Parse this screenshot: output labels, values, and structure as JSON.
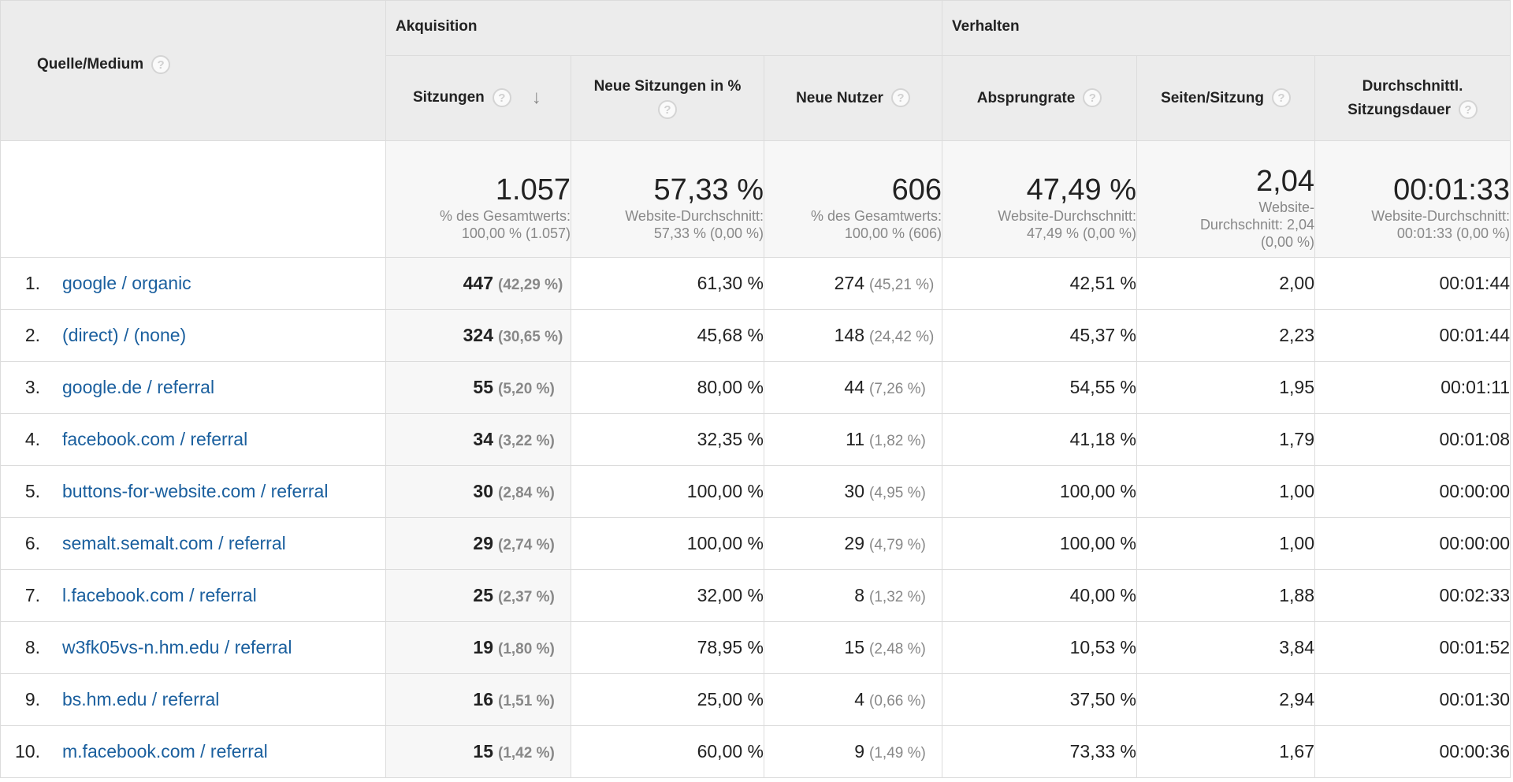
{
  "header": {
    "source_label": "Quelle/Medium",
    "group_acquisition": "Akquisition",
    "group_behavior": "Verhalten",
    "col_sessions": "Sitzungen",
    "col_new_sessions": "Neue Sitzungen in %",
    "col_new_users": "Neue Nutzer",
    "col_bounce": "Absprungrate",
    "col_pages": "Seiten/Sitzung",
    "col_duration_line1": "Durchschnittl.",
    "col_duration_line2": "Sitzungsdauer",
    "help_glyph": "?",
    "sort_glyph": "↓"
  },
  "summary": {
    "sessions": {
      "value": "1.057",
      "sub1": "% des Gesamtwerts:",
      "sub2": "100,00 % (1.057)"
    },
    "new_sessions": {
      "value": "57,33 %",
      "sub1": "Website-Durchschnitt:",
      "sub2": "57,33 % (0,00 %)"
    },
    "new_users": {
      "value": "606",
      "sub1": "% des Gesamtwerts:",
      "sub2": "100,00 % (606)"
    },
    "bounce": {
      "value": "47,49 %",
      "sub1": "Website-Durchschnitt:",
      "sub2": "47,49 % (0,00 %)"
    },
    "pages": {
      "value": "2,04",
      "sub1": "Website-",
      "sub2": "Durchschnitt: 2,04",
      "sub3": "(0,00 %)"
    },
    "duration": {
      "value": "00:01:33",
      "sub1": "Website-Durchschnitt:",
      "sub2": "00:01:33 (0,00 %)"
    }
  },
  "rows": [
    {
      "idx": "1.",
      "source": "google / organic",
      "sessions": "447",
      "sessions_pct": "(42,29 %)",
      "new_sessions": "61,30 %",
      "new_users": "274",
      "new_users_pct": "(45,21 %)",
      "bounce": "42,51 %",
      "pages": "2,00",
      "duration": "00:01:44"
    },
    {
      "idx": "2.",
      "source": "(direct) / (none)",
      "sessions": "324",
      "sessions_pct": "(30,65 %)",
      "new_sessions": "45,68 %",
      "new_users": "148",
      "new_users_pct": "(24,42 %)",
      "bounce": "45,37 %",
      "pages": "2,23",
      "duration": "00:01:44"
    },
    {
      "idx": "3.",
      "source": "google.de / referral",
      "sessions": "55",
      "sessions_pct": "(5,20 %)",
      "new_sessions": "80,00 %",
      "new_users": "44",
      "new_users_pct": "(7,26 %)",
      "bounce": "54,55 %",
      "pages": "1,95",
      "duration": "00:01:11"
    },
    {
      "idx": "4.",
      "source": "facebook.com / referral",
      "sessions": "34",
      "sessions_pct": "(3,22 %)",
      "new_sessions": "32,35 %",
      "new_users": "11",
      "new_users_pct": "(1,82 %)",
      "bounce": "41,18 %",
      "pages": "1,79",
      "duration": "00:01:08"
    },
    {
      "idx": "5.",
      "source": "buttons-for-website.com / referral",
      "sessions": "30",
      "sessions_pct": "(2,84 %)",
      "new_sessions": "100,00 %",
      "new_users": "30",
      "new_users_pct": "(4,95 %)",
      "bounce": "100,00 %",
      "pages": "1,00",
      "duration": "00:00:00"
    },
    {
      "idx": "6.",
      "source": "semalt.semalt.com / referral",
      "sessions": "29",
      "sessions_pct": "(2,74 %)",
      "new_sessions": "100,00 %",
      "new_users": "29",
      "new_users_pct": "(4,79 %)",
      "bounce": "100,00 %",
      "pages": "1,00",
      "duration": "00:00:00"
    },
    {
      "idx": "7.",
      "source": "l.facebook.com / referral",
      "sessions": "25",
      "sessions_pct": "(2,37 %)",
      "new_sessions": "32,00 %",
      "new_users": "8",
      "new_users_pct": "(1,32 %)",
      "bounce": "40,00 %",
      "pages": "1,88",
      "duration": "00:02:33"
    },
    {
      "idx": "8.",
      "source": "w3fk05vs-n.hm.edu / referral",
      "sessions": "19",
      "sessions_pct": "(1,80 %)",
      "new_sessions": "78,95 %",
      "new_users": "15",
      "new_users_pct": "(2,48 %)",
      "bounce": "10,53 %",
      "pages": "3,84",
      "duration": "00:01:52"
    },
    {
      "idx": "9.",
      "source": "bs.hm.edu / referral",
      "sessions": "16",
      "sessions_pct": "(1,51 %)",
      "new_sessions": "25,00 %",
      "new_users": "4",
      "new_users_pct": "(0,66 %)",
      "bounce": "37,50 %",
      "pages": "2,94",
      "duration": "00:01:30"
    },
    {
      "idx": "10.",
      "source": "m.facebook.com / referral",
      "sessions": "15",
      "sessions_pct": "(1,42 %)",
      "new_sessions": "60,00 %",
      "new_users": "9",
      "new_users_pct": "(1,49 %)",
      "bounce": "73,33 %",
      "pages": "1,67",
      "duration": "00:00:36"
    }
  ]
}
